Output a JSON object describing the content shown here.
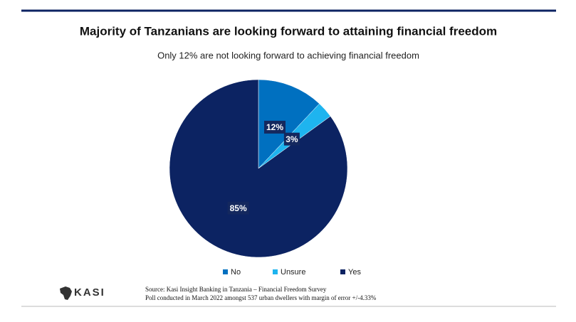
{
  "chart_data": {
    "type": "pie",
    "title": "Majority of Tanzanians are looking forward to attaining financial freedom",
    "subtitle": "Only 12% are not looking forward to achieving financial freedom",
    "categories": [
      "No",
      "Unsure",
      "Yes"
    ],
    "values": [
      12,
      3,
      85
    ],
    "value_labels": [
      "12%",
      "3%",
      "85%"
    ],
    "colors": [
      "#0070c0",
      "#1eb4ef",
      "#0c2362"
    ],
    "legend": "bottom",
    "source": [
      "Source: Kasi Insight Banking in Tanzania – Financial Freedom Survey",
      "Poll conducted in March 2022 amongst 537 urban dwellers with margin of error +/-4.33%"
    ],
    "logo": "KASI"
  }
}
